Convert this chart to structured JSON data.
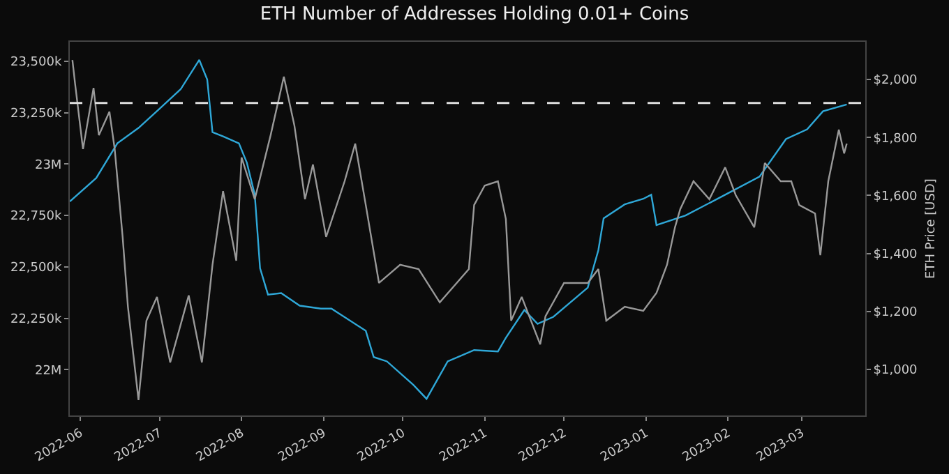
{
  "chart_data": {
    "type": "line",
    "title": "ETH Number of Addresses Holding 0.01+ Coins",
    "y2label": "ETH Price [USD]",
    "series": [
      {
        "color": "#999999",
        "axis": "y2",
        "x": [
          "2022-05-29",
          "2022-05-30",
          "2022-06-02",
          "2022-06-06",
          "2022-06-08",
          "2022-06-12",
          "2022-06-14",
          "2022-06-17",
          "2022-06-19",
          "2022-06-23",
          "2022-06-26",
          "2022-06-30",
          "2022-07-05",
          "2022-07-12",
          "2022-07-17",
          "2022-07-21",
          "2022-07-25",
          "2022-07-30",
          "2022-08-01",
          "2022-08-06",
          "2022-08-12",
          "2022-08-17",
          "2022-08-21",
          "2022-08-25",
          "2022-08-28",
          "2022-09-02",
          "2022-09-09",
          "2022-09-13",
          "2022-09-17",
          "2022-09-22",
          "2022-09-30",
          "2022-10-07",
          "2022-10-15",
          "2022-10-26",
          "2022-10-28",
          "2022-11-01",
          "2022-11-06",
          "2022-11-09",
          "2022-11-11",
          "2022-11-15",
          "2022-11-22",
          "2022-11-24",
          "2022-12-01",
          "2022-12-10",
          "2022-12-14",
          "2022-12-17",
          "2022-12-24",
          "2022-12-31",
          "2023-01-05",
          "2023-01-09",
          "2023-01-12",
          "2023-01-14",
          "2023-01-19",
          "2023-01-25",
          "2023-01-31",
          "2023-02-04",
          "2023-02-11",
          "2023-02-15",
          "2023-02-21",
          "2023-02-25",
          "2023-02-28",
          "2023-03-06",
          "2023-03-08",
          "2023-03-11",
          "2023-03-15",
          "2023-03-17",
          "2023-03-18"
        ],
        "values": [
          2067,
          1986,
          1760,
          1971,
          1808,
          1889,
          1760,
          1457,
          1216,
          894,
          1168,
          1250,
          1024,
          1255,
          1024,
          1361,
          1615,
          1375,
          1731,
          1587,
          1808,
          2010,
          1841,
          1587,
          1707,
          1457,
          1649,
          1779,
          1567,
          1298,
          1361,
          1346,
          1231,
          1346,
          1567,
          1634,
          1649,
          1519,
          1168,
          1250,
          1086,
          1183,
          1298,
          1298,
          1346,
          1168,
          1216,
          1202,
          1264,
          1361,
          1490,
          1553,
          1649,
          1587,
          1697,
          1601,
          1490,
          1712,
          1649,
          1649,
          1567,
          1538,
          1394,
          1649,
          1827,
          1745,
          1779
        ]
      },
      {
        "color": "#2fa8d8",
        "x": [
          "2022-05-28",
          "2022-06-07",
          "2022-06-15",
          "2022-06-23",
          "2022-07-01",
          "2022-07-09",
          "2022-07-16",
          "2022-07-19",
          "2022-07-21",
          "2022-07-25",
          "2022-07-31",
          "2022-08-03",
          "2022-08-06",
          "2022-08-08",
          "2022-08-11",
          "2022-08-16",
          "2022-08-23",
          "2022-08-31",
          "2022-09-04",
          "2022-09-17",
          "2022-09-20",
          "2022-09-25",
          "2022-10-05",
          "2022-10-10",
          "2022-10-18",
          "2022-10-28",
          "2022-11-06",
          "2022-11-09",
          "2022-11-16",
          "2022-11-21",
          "2022-11-27",
          "2022-12-10",
          "2022-12-14",
          "2022-12-16",
          "2022-12-24",
          "2022-12-31",
          "2023-01-03",
          "2023-01-05",
          "2023-01-16",
          "2023-01-31",
          "2023-02-13",
          "2023-02-23",
          "2023-03-03",
          "2023-03-09",
          "2023-03-18"
        ],
        "values": [
          22818000,
          22932000,
          23101000,
          23176000,
          23270000,
          23365000,
          23507000,
          23412000,
          23155000,
          23135000,
          23101000,
          23007000,
          22851000,
          22493000,
          22365000,
          22372000,
          22311000,
          22297000,
          22297000,
          22189000,
          22061000,
          22040000,
          21926000,
          21858000,
          22040000,
          22095000,
          22088000,
          22155000,
          22290000,
          22223000,
          22257000,
          22399000,
          22581000,
          22736000,
          22804000,
          22831000,
          22851000,
          22703000,
          22750000,
          22851000,
          22939000,
          23122000,
          23169000,
          23257000,
          23290000
        ]
      }
    ],
    "xlim": [
      "2022-05-28",
      "2023-03-25"
    ],
    "xticks": [
      {
        "value": "2022-06-01",
        "label": "2022-06"
      },
      {
        "value": "2022-07-01",
        "label": "2022-07"
      },
      {
        "value": "2022-08-01",
        "label": "2022-08"
      },
      {
        "value": "2022-09-01",
        "label": "2022-09"
      },
      {
        "value": "2022-10-01",
        "label": "2022-10"
      },
      {
        "value": "2022-11-01",
        "label": "2022-11"
      },
      {
        "value": "2022-12-01",
        "label": "2022-12"
      },
      {
        "value": "2023-01-01",
        "label": "2023-01"
      },
      {
        "value": "2023-02-01",
        "label": "2023-02"
      },
      {
        "value": "2023-03-01",
        "label": "2023-03"
      }
    ],
    "ylim": [
      21777000,
      23595000
    ],
    "yticks": [
      {
        "value": 22000000,
        "label": "22M"
      },
      {
        "value": 22250000,
        "label": "22,250k"
      },
      {
        "value": 22500000,
        "label": "22,500k"
      },
      {
        "value": 22750000,
        "label": "22,750k"
      },
      {
        "value": 23000000,
        "label": "23M"
      },
      {
        "value": 23250000,
        "label": "23,250k"
      },
      {
        "value": 23500000,
        "label": "23,500k"
      }
    ],
    "y2lim": [
      841,
      2130
    ],
    "y2ticks": [
      {
        "value": 1000,
        "label": "$1,000"
      },
      {
        "value": 1200,
        "label": "$1,200"
      },
      {
        "value": 1400,
        "label": "$1,400"
      },
      {
        "value": 1600,
        "label": "$1,600"
      },
      {
        "value": 1800,
        "label": "$1,800"
      },
      {
        "value": 2000,
        "label": "$2,000"
      }
    ],
    "ref_lines": [
      {
        "axis": "y",
        "value": 23297000,
        "color": "#dddddd",
        "line_style": "dashed"
      }
    ],
    "grid": false
  }
}
